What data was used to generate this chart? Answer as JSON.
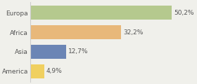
{
  "categories": [
    "Europa",
    "Africa",
    "Asia",
    "America"
  ],
  "values": [
    50.2,
    32.2,
    12.7,
    4.9
  ],
  "labels": [
    "50,2%",
    "32,2%",
    "12,7%",
    "4,9%"
  ],
  "bar_colors": [
    "#b5c98e",
    "#e8b87a",
    "#6b85b5",
    "#f0d060"
  ],
  "xlim": [
    0,
    58
  ],
  "background_color": "#f0f0eb",
  "bar_height": 0.72,
  "label_fontsize": 6.5,
  "category_fontsize": 6.5,
  "label_color": "#555555",
  "axis_line_color": "#cccccc"
}
